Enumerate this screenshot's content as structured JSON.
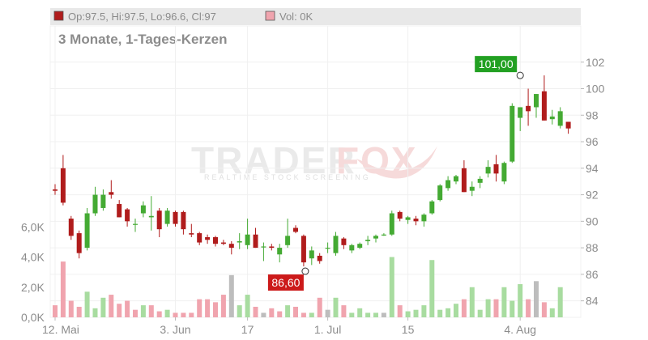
{
  "legend": {
    "ohlc_label": "Op:97.5, Hi:97.5, Lo:96.6, Cl:97",
    "volume_label": "Vol: 0K",
    "ohlc_color": "#b01c1c",
    "volume_color": "#f0a4ae"
  },
  "subtitle": "3 Monate, 1-Tages-Kerzen",
  "watermark": {
    "main": "TRADER",
    "fox": "FOX",
    "tagline": "REALTIME STOCK SCREENING"
  },
  "colors": {
    "up": "#44aa33",
    "down": "#b01c1c",
    "vol_up": "#a8dca0",
    "vol_down": "#f0a4ae",
    "vol_neutral": "#bdbdbd",
    "high_badge": "#22a022",
    "low_badge": "#cc1a1a"
  },
  "chart_data": {
    "type": "candlestick",
    "price_axis": {
      "ticks": [
        "84",
        "86",
        "88",
        "90",
        "92",
        "94",
        "96",
        "98",
        "100",
        "102"
      ],
      "ylim": [
        83,
        104
      ]
    },
    "volume_axis": {
      "ticks": [
        "0,0K",
        "2,0K",
        "4,0K",
        "6,0K"
      ],
      "ylim": [
        0,
        8000
      ]
    },
    "x_ticks": [
      {
        "label": "12. Mai",
        "index": 0
      },
      {
        "label": "3. Jun",
        "index": 15
      },
      {
        "label": "17",
        "index": 24
      },
      {
        "label": "1. Jul",
        "index": 34
      },
      {
        "label": "15",
        "index": 44
      },
      {
        "label": "4. Aug",
        "index": 58
      }
    ],
    "high_marker": {
      "label": "101,00",
      "value": 101.0,
      "index": 58
    },
    "low_marker": {
      "label": "86,60",
      "value": 86.6,
      "index": 31
    },
    "candles": [
      {
        "o": 92.4,
        "h": 92.8,
        "l": 92.0,
        "c": 92.3,
        "v": 800,
        "vt": "down"
      },
      {
        "o": 94.0,
        "h": 95.0,
        "l": 91.2,
        "c": 91.4,
        "v": 3700,
        "vt": "down"
      },
      {
        "o": 90.2,
        "h": 90.4,
        "l": 88.6,
        "c": 88.9,
        "v": 1100,
        "vt": "down"
      },
      {
        "o": 89.1,
        "h": 89.3,
        "l": 87.2,
        "c": 87.6,
        "v": 700,
        "vt": "down"
      },
      {
        "o": 88.0,
        "h": 91.0,
        "l": 87.8,
        "c": 90.6,
        "v": 1700,
        "vt": "up"
      },
      {
        "o": 90.6,
        "h": 92.6,
        "l": 90.4,
        "c": 92.0,
        "v": 600,
        "vt": "up"
      },
      {
        "o": 91.0,
        "h": 92.4,
        "l": 90.8,
        "c": 92.0,
        "v": 1300,
        "vt": "up"
      },
      {
        "o": 92.2,
        "h": 93.1,
        "l": 91.7,
        "c": 92.0,
        "v": 1500,
        "vt": "down"
      },
      {
        "o": 91.3,
        "h": 91.6,
        "l": 90.3,
        "c": 90.3,
        "v": 900,
        "vt": "down"
      },
      {
        "o": 90.9,
        "h": 91.0,
        "l": 89.6,
        "c": 90.0,
        "v": 1100,
        "vt": "down"
      },
      {
        "o": 89.8,
        "h": 90.2,
        "l": 89.2,
        "c": 89.8,
        "v": 500,
        "vt": "down"
      },
      {
        "o": 90.6,
        "h": 91.5,
        "l": 90.3,
        "c": 91.2,
        "v": 800,
        "vt": "up"
      },
      {
        "o": 90.3,
        "h": 91.9,
        "l": 89.3,
        "c": 90.4,
        "v": 800,
        "vt": "down"
      },
      {
        "o": 90.8,
        "h": 91.0,
        "l": 88.8,
        "c": 89.4,
        "v": 400,
        "vt": "down"
      },
      {
        "o": 89.8,
        "h": 91.0,
        "l": 89.6,
        "c": 90.8,
        "v": 500,
        "vt": "up"
      },
      {
        "o": 90.7,
        "h": 90.8,
        "l": 89.6,
        "c": 89.8,
        "v": 300,
        "vt": "down"
      },
      {
        "o": 90.7,
        "h": 90.8,
        "l": 89.0,
        "c": 89.4,
        "v": 300,
        "vt": "down"
      },
      {
        "o": 89.1,
        "h": 89.8,
        "l": 88.8,
        "c": 89.0,
        "v": 300,
        "vt": "down"
      },
      {
        "o": 89.1,
        "h": 89.2,
        "l": 88.2,
        "c": 88.4,
        "v": 1200,
        "vt": "down"
      },
      {
        "o": 88.8,
        "h": 89.0,
        "l": 88.3,
        "c": 88.6,
        "v": 1200,
        "vt": "down"
      },
      {
        "o": 88.8,
        "h": 88.9,
        "l": 88.1,
        "c": 88.3,
        "v": 1000,
        "vt": "down"
      },
      {
        "o": 88.4,
        "h": 88.6,
        "l": 88.2,
        "c": 88.3,
        "v": 1500,
        "vt": "down"
      },
      {
        "o": 88.3,
        "h": 88.5,
        "l": 87.5,
        "c": 88.0,
        "v": 2800,
        "vt": "neutral"
      },
      {
        "o": 88.4,
        "h": 89.1,
        "l": 87.9,
        "c": 88.5,
        "v": 800,
        "vt": "up"
      },
      {
        "o": 88.2,
        "h": 90.2,
        "l": 87.9,
        "c": 89.0,
        "v": 1500,
        "vt": "up"
      },
      {
        "o": 89.0,
        "h": 89.5,
        "l": 88.0,
        "c": 88.0,
        "v": 700,
        "vt": "down"
      },
      {
        "o": 88.1,
        "h": 88.4,
        "l": 87.0,
        "c": 88.1,
        "v": 300,
        "vt": "neutral"
      },
      {
        "o": 88.1,
        "h": 88.3,
        "l": 87.8,
        "c": 88.0,
        "v": 600,
        "vt": "down"
      },
      {
        "o": 87.5,
        "h": 88.3,
        "l": 86.9,
        "c": 88.0,
        "v": 400,
        "vt": "down"
      },
      {
        "o": 88.2,
        "h": 90.2,
        "l": 88.0,
        "c": 88.9,
        "v": 800,
        "vt": "up"
      },
      {
        "o": 89.5,
        "h": 89.7,
        "l": 89.1,
        "c": 89.2,
        "v": 700,
        "vt": "down"
      },
      {
        "o": 88.9,
        "h": 89.0,
        "l": 86.6,
        "c": 86.9,
        "v": 300,
        "vt": "down"
      },
      {
        "o": 87.2,
        "h": 88.1,
        "l": 86.7,
        "c": 87.8,
        "v": 300,
        "vt": "up"
      },
      {
        "o": 87.4,
        "h": 87.6,
        "l": 86.8,
        "c": 87.0,
        "v": 1300,
        "vt": "down"
      },
      {
        "o": 88.0,
        "h": 88.4,
        "l": 87.6,
        "c": 88.0,
        "v": 500,
        "vt": "neutral"
      },
      {
        "o": 87.6,
        "h": 89.2,
        "l": 87.4,
        "c": 88.9,
        "v": 1300,
        "vt": "up"
      },
      {
        "o": 88.7,
        "h": 88.8,
        "l": 87.9,
        "c": 88.2,
        "v": 800,
        "vt": "down"
      },
      {
        "o": 87.8,
        "h": 88.3,
        "l": 87.6,
        "c": 88.2,
        "v": 300,
        "vt": "up"
      },
      {
        "o": 88.0,
        "h": 88.4,
        "l": 87.9,
        "c": 88.3,
        "v": 600,
        "vt": "up"
      },
      {
        "o": 88.5,
        "h": 88.9,
        "l": 88.2,
        "c": 88.6,
        "v": 300,
        "vt": "up"
      },
      {
        "o": 88.7,
        "h": 89.0,
        "l": 88.4,
        "c": 88.9,
        "v": 300,
        "vt": "up"
      },
      {
        "o": 89.0,
        "h": 89.1,
        "l": 88.9,
        "c": 89.0,
        "v": 300,
        "vt": "neutral"
      },
      {
        "o": 89.0,
        "h": 90.8,
        "l": 88.9,
        "c": 90.6,
        "v": 4000,
        "vt": "up"
      },
      {
        "o": 90.7,
        "h": 90.8,
        "l": 90.0,
        "c": 90.2,
        "v": 800,
        "vt": "down"
      },
      {
        "o": 90.1,
        "h": 90.4,
        "l": 89.8,
        "c": 90.3,
        "v": 400,
        "vt": "up"
      },
      {
        "o": 90.2,
        "h": 90.4,
        "l": 89.7,
        "c": 90.0,
        "v": 500,
        "vt": "up"
      },
      {
        "o": 90.0,
        "h": 90.6,
        "l": 89.6,
        "c": 90.5,
        "v": 800,
        "vt": "up"
      },
      {
        "o": 90.6,
        "h": 91.6,
        "l": 90.5,
        "c": 91.5,
        "v": 3800,
        "vt": "up"
      },
      {
        "o": 91.6,
        "h": 92.8,
        "l": 91.5,
        "c": 92.7,
        "v": 500,
        "vt": "up"
      },
      {
        "o": 92.5,
        "h": 93.4,
        "l": 92.3,
        "c": 93.1,
        "v": 600,
        "vt": "up"
      },
      {
        "o": 93.0,
        "h": 93.5,
        "l": 92.8,
        "c": 93.4,
        "v": 900,
        "vt": "up"
      },
      {
        "o": 94.0,
        "h": 94.6,
        "l": 92.2,
        "c": 92.2,
        "v": 1200,
        "vt": "down"
      },
      {
        "o": 92.3,
        "h": 93.0,
        "l": 91.9,
        "c": 92.6,
        "v": 2000,
        "vt": "up"
      },
      {
        "o": 92.9,
        "h": 93.4,
        "l": 92.5,
        "c": 93.2,
        "v": 500,
        "vt": "up"
      },
      {
        "o": 93.6,
        "h": 94.6,
        "l": 93.3,
        "c": 94.1,
        "v": 1200,
        "vt": "up"
      },
      {
        "o": 94.3,
        "h": 95.0,
        "l": 93.0,
        "c": 93.6,
        "v": 1200,
        "vt": "down"
      },
      {
        "o": 93.0,
        "h": 94.5,
        "l": 92.8,
        "c": 94.4,
        "v": 2000,
        "vt": "up"
      },
      {
        "o": 94.5,
        "h": 98.9,
        "l": 94.4,
        "c": 98.7,
        "v": 1100,
        "vt": "up"
      },
      {
        "o": 97.8,
        "h": 98.6,
        "l": 96.8,
        "c": 98.6,
        "v": 2200,
        "vt": "up"
      },
      {
        "o": 98.7,
        "h": 100.0,
        "l": 97.2,
        "c": 98.3,
        "v": 1200,
        "vt": "down"
      },
      {
        "o": 98.6,
        "h": 99.6,
        "l": 97.8,
        "c": 99.6,
        "v": 2400,
        "vt": "neutral"
      },
      {
        "o": 99.8,
        "h": 101.0,
        "l": 97.6,
        "c": 97.6,
        "v": 1000,
        "vt": "down"
      },
      {
        "o": 97.7,
        "h": 98.4,
        "l": 97.3,
        "c": 97.9,
        "v": 600,
        "vt": "up"
      },
      {
        "o": 97.2,
        "h": 98.6,
        "l": 97.0,
        "c": 98.3,
        "v": 2000,
        "vt": "up"
      },
      {
        "o": 97.5,
        "h": 97.5,
        "l": 96.6,
        "c": 97.0,
        "v": 0,
        "vt": "down"
      }
    ]
  }
}
